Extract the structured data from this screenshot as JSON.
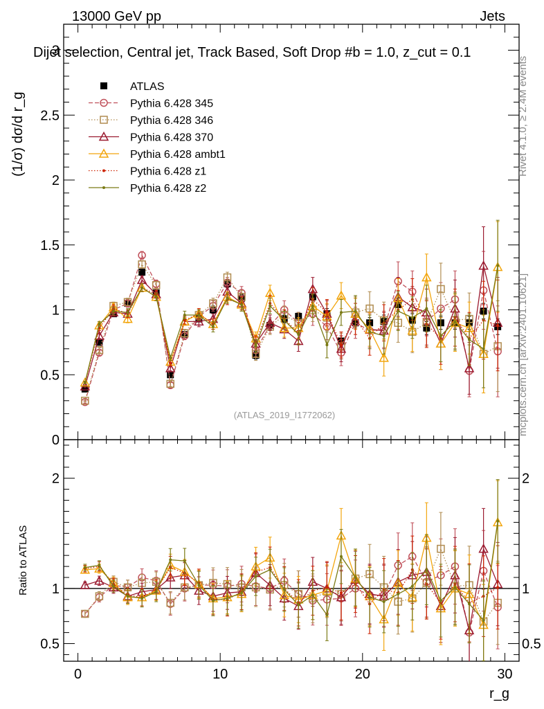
{
  "header": {
    "left": "13000 GeV pp",
    "right": "Jets"
  },
  "plot_title": "Dijet selection, Central jet, Track Based, Soft Drop #b = 1.0, z_cut = 0.1",
  "side_labels": {
    "rivet": "Rivet 4.1.0, ≥ 2.4M events",
    "mcplots": "mcplots.cern.ch [arXiv:2401.10621]"
  },
  "analysis_id": "(ATLAS_2019_I1772062)",
  "colors": {
    "ATLAS": "#000000",
    "p345": "#c0505a",
    "p346": "#b08c50",
    "p370": "#9b1b30",
    "ambt1": "#f2a50c",
    "z1": "#cc2200",
    "z2": "#7a7a14"
  },
  "chart_data": [
    {
      "type": "line",
      "panel": "main",
      "title": "Dijet selection, Central jet, Track Based, Soft Drop #b = 1.0, z_cut = 0.1",
      "ylabel": "(1/σ) dσ/d r_g",
      "xlabel": "",
      "xlim": [
        -1,
        31
      ],
      "ylim": [
        0,
        3.2
      ],
      "yticks": [
        0,
        0.5,
        1,
        1.5,
        2,
        2.5,
        3
      ],
      "legend_position": "top-left",
      "x": [
        0.5,
        1.5,
        2.5,
        3.5,
        4.5,
        5.5,
        6.5,
        7.5,
        8.5,
        9.5,
        10.5,
        11.5,
        12.5,
        13.5,
        14.5,
        15.5,
        16.5,
        17.5,
        18.5,
        19.5,
        20.5,
        21.5,
        22.5,
        23.5,
        24.5,
        25.5,
        26.5,
        27.5,
        28.5,
        29.5
      ],
      "series": [
        {
          "name": "ATLAS",
          "key": "ATLAS",
          "marker": "filled-square",
          "line": "none",
          "values": [
            0.39,
            0.75,
            0.97,
            1.05,
            1.29,
            1.13,
            0.5,
            0.81,
            0.93,
            1.0,
            1.2,
            1.09,
            0.65,
            0.88,
            0.93,
            0.95,
            1.1,
            0.97,
            0.76,
            0.9,
            0.9,
            0.91,
            1.04,
            0.92,
            0.86,
            0.9,
            0.9,
            0.9,
            0.99,
            0.87
          ],
          "errors": [
            0.02,
            0.02,
            0.02,
            0.02,
            0.02,
            0.02,
            0.02,
            0.02,
            0.02,
            0.03,
            0.03,
            0.03,
            0.03,
            0.03,
            0.03,
            0.03,
            0.04,
            0.04,
            0.04,
            0.04,
            0.04,
            0.05,
            0.05,
            0.05,
            0.05,
            0.05,
            0.05,
            0.05,
            0.06,
            0.06
          ]
        },
        {
          "name": "Pythia 6.428 345",
          "key": "p345",
          "marker": "open-circle",
          "line": "dashed",
          "values": [
            0.29,
            0.67,
            1.0,
            1.05,
            1.42,
            1.2,
            0.42,
            0.8,
            0.95,
            1.03,
            1.21,
            1.13,
            0.69,
            0.88,
            1.0,
            0.9,
            0.97,
            0.87,
            0.67,
            0.9,
            0.84,
            0.85,
            1.22,
            1.14,
            0.91,
            1.01,
            1.08,
            0.53,
            1.15,
            0.68
          ],
          "errors": [
            0.01,
            0.02,
            0.03,
            0.03,
            0.03,
            0.03,
            0.02,
            0.03,
            0.04,
            0.04,
            0.04,
            0.05,
            0.05,
            0.06,
            0.07,
            0.08,
            0.09,
            0.1,
            0.1,
            0.12,
            0.13,
            0.14,
            0.15,
            0.16,
            0.18,
            0.2,
            0.22,
            0.2,
            0.3,
            0.35
          ]
        },
        {
          "name": "Pythia 6.428 346",
          "key": "p346",
          "marker": "open-square",
          "line": "dotted",
          "values": [
            0.3,
            0.69,
            1.03,
            1.06,
            1.35,
            1.19,
            0.43,
            0.82,
            0.96,
            1.05,
            1.25,
            1.1,
            0.66,
            0.87,
            0.96,
            0.9,
            1.0,
            0.94,
            0.72,
            0.98,
            1.01,
            0.92,
            0.9,
            0.83,
            0.9,
            1.16,
            0.92,
            0.93,
            0.66,
            0.72
          ],
          "errors": [
            0.01,
            0.02,
            0.03,
            0.03,
            0.03,
            0.03,
            0.02,
            0.03,
            0.04,
            0.04,
            0.04,
            0.05,
            0.05,
            0.06,
            0.07,
            0.08,
            0.09,
            0.1,
            0.1,
            0.12,
            0.13,
            0.14,
            0.15,
            0.16,
            0.18,
            0.2,
            0.22,
            0.2,
            0.3,
            0.35
          ]
        },
        {
          "name": "Pythia 6.428 370",
          "key": "p370",
          "marker": "open-triangle",
          "line": "solid",
          "values": [
            0.41,
            0.8,
            0.98,
            0.97,
            1.23,
            1.12,
            0.55,
            0.91,
            0.91,
            0.93,
            1.14,
            1.05,
            0.74,
            0.9,
            0.85,
            0.76,
            1.16,
            0.97,
            0.7,
            0.97,
            0.85,
            0.84,
            1.1,
            1.02,
            0.98,
            0.74,
            1.01,
            0.55,
            1.34,
            0.9
          ],
          "errors": [
            0.01,
            0.02,
            0.03,
            0.03,
            0.03,
            0.03,
            0.02,
            0.03,
            0.04,
            0.04,
            0.04,
            0.05,
            0.05,
            0.06,
            0.07,
            0.08,
            0.09,
            0.1,
            0.1,
            0.12,
            0.13,
            0.14,
            0.15,
            0.16,
            0.18,
            0.2,
            0.22,
            0.2,
            0.3,
            0.35
          ]
        },
        {
          "name": "Pythia 6.428 ambt1",
          "key": "ambt1",
          "marker": "open-triangle",
          "line": "solid",
          "values": [
            0.44,
            0.88,
            1.02,
            0.93,
            1.17,
            1.1,
            0.6,
            0.91,
            0.97,
            0.89,
            1.1,
            1.04,
            0.78,
            1.13,
            0.86,
            0.86,
            1.03,
            0.95,
            1.11,
            0.97,
            0.85,
            0.63,
            1.09,
            0.84,
            1.25,
            0.74,
            0.9,
            0.86,
            0.66,
            1.33
          ],
          "errors": [
            0.01,
            0.02,
            0.03,
            0.03,
            0.03,
            0.03,
            0.02,
            0.03,
            0.04,
            0.04,
            0.04,
            0.05,
            0.05,
            0.06,
            0.07,
            0.08,
            0.09,
            0.1,
            0.1,
            0.12,
            0.13,
            0.14,
            0.15,
            0.16,
            0.18,
            0.2,
            0.22,
            0.2,
            0.3,
            0.35
          ]
        },
        {
          "name": "Pythia 6.428 z1",
          "key": "z1",
          "marker": "small-dot",
          "line": "dotted",
          "values": [
            0.44,
            0.86,
            1.01,
            0.97,
            1.17,
            1.12,
            0.59,
            0.92,
            0.97,
            0.89,
            1.08,
            1.05,
            0.75,
            1.05,
            0.93,
            0.82,
            1.08,
            0.98,
            0.73,
            0.93,
            0.78,
            0.9,
            1.0,
            1.08,
            0.89,
            0.78,
            0.94,
            0.78,
            0.92,
            0.88
          ],
          "errors": [
            0.01,
            0.02,
            0.03,
            0.03,
            0.03,
            0.03,
            0.02,
            0.03,
            0.04,
            0.04,
            0.04,
            0.05,
            0.05,
            0.06,
            0.07,
            0.08,
            0.09,
            0.1,
            0.1,
            0.12,
            0.13,
            0.14,
            0.15,
            0.16,
            0.18,
            0.2,
            0.22,
            0.2,
            0.3,
            0.35
          ]
        },
        {
          "name": "Pythia 6.428 z2",
          "key": "z2",
          "marker": "small-dot",
          "line": "solid",
          "values": [
            0.44,
            0.89,
            0.99,
            0.98,
            1.17,
            1.1,
            0.63,
            0.96,
            0.96,
            0.87,
            1.09,
            1.04,
            0.72,
            1.03,
            0.92,
            0.81,
            1.03,
            0.73,
            0.98,
            0.99,
            0.83,
            0.8,
            0.99,
            0.94,
            1.01,
            0.8,
            0.91,
            0.77,
            0.7,
            1.34
          ],
          "errors": [
            0.01,
            0.02,
            0.03,
            0.03,
            0.03,
            0.03,
            0.02,
            0.03,
            0.04,
            0.04,
            0.04,
            0.05,
            0.05,
            0.06,
            0.07,
            0.08,
            0.09,
            0.1,
            0.1,
            0.12,
            0.13,
            0.14,
            0.15,
            0.16,
            0.18,
            0.2,
            0.22,
            0.2,
            0.3,
            0.35
          ]
        }
      ]
    },
    {
      "type": "line",
      "panel": "ratio",
      "ylabel": "Ratio to ATLAS",
      "xlabel": "r_g",
      "xlim": [
        -1,
        31
      ],
      "ylim": [
        0.34,
        2.35
      ],
      "yticks": [
        0.5,
        1,
        2
      ],
      "xticks": [
        0,
        10,
        20,
        30
      ],
      "reference_line": 1.0,
      "x": [
        0.5,
        1.5,
        2.5,
        3.5,
        4.5,
        5.5,
        6.5,
        7.5,
        8.5,
        9.5,
        10.5,
        11.5,
        12.5,
        13.5,
        14.5,
        15.5,
        16.5,
        17.5,
        18.5,
        19.5,
        20.5,
        21.5,
        22.5,
        23.5,
        24.5,
        25.5,
        26.5,
        27.5,
        28.5,
        29.5
      ],
      "series": [
        {
          "name": "Pythia 6.428 345",
          "key": "p345",
          "marker": "open-circle",
          "line": "dashed",
          "values": [
            0.77,
            0.92,
            1.03,
            1.01,
            1.1,
            1.07,
            0.86,
            1.0,
            1.03,
            1.03,
            1.02,
            1.04,
            1.02,
            1.0,
            1.07,
            0.95,
            0.89,
            0.9,
            0.91,
            1.0,
            0.94,
            0.94,
            1.21,
            1.29,
            1.06,
            1.12,
            1.2,
            0.6,
            1.16,
            0.83
          ]
        },
        {
          "name": "Pythia 6.428 346",
          "key": "p346",
          "marker": "open-square",
          "line": "dotted",
          "values": [
            0.77,
            0.93,
            1.06,
            1.01,
            1.05,
            1.06,
            0.87,
            1.01,
            1.03,
            1.05,
            1.04,
            1.01,
            1.01,
            0.99,
            1.03,
            0.95,
            0.91,
            0.97,
            0.95,
            1.09,
            1.13,
            1.01,
            0.88,
            0.91,
            1.05,
            1.36,
            1.02,
            1.03,
            0.7,
            0.87
          ]
        },
        {
          "name": "Pythia 6.428 370",
          "key": "p370",
          "marker": "open-triangle",
          "line": "solid",
          "values": [
            1.03,
            1.07,
            1.01,
            0.93,
            0.97,
            0.99,
            1.1,
            1.12,
            0.98,
            0.93,
            0.96,
            0.97,
            1.14,
            1.03,
            0.91,
            0.84,
            1.06,
            1.0,
            0.92,
            1.08,
            0.95,
            0.93,
            1.06,
            1.12,
            1.15,
            0.84,
            1.12,
            0.62,
            1.36,
            1.04
          ]
        },
        {
          "name": "Pythia 6.428 ambt1",
          "key": "ambt1",
          "marker": "open-triangle",
          "line": "solid",
          "values": [
            1.17,
            1.18,
            1.05,
            0.92,
            0.92,
            0.98,
            1.21,
            1.15,
            1.04,
            0.91,
            0.92,
            0.95,
            1.2,
            1.28,
            0.94,
            0.9,
            0.94,
            0.98,
            1.48,
            1.09,
            0.93,
            0.72,
            1.05,
            0.92,
            1.46,
            0.82,
            1.0,
            0.95,
            0.67,
            1.6
          ]
        },
        {
          "name": "Pythia 6.428 z1",
          "key": "z1",
          "marker": "small-dot",
          "line": "dotted",
          "values": [
            1.18,
            1.2,
            1.04,
            0.94,
            0.92,
            0.99,
            1.19,
            1.14,
            1.05,
            0.9,
            0.9,
            0.97,
            1.15,
            1.19,
            1.0,
            0.87,
            0.98,
            1.01,
            0.96,
            1.04,
            0.86,
            0.99,
            0.96,
            1.17,
            1.04,
            0.87,
            1.04,
            0.87,
            0.93,
            1.01
          ]
        },
        {
          "name": "Pythia 6.428 z2",
          "key": "z2",
          "marker": "small-dot",
          "line": "solid",
          "values": [
            1.19,
            1.21,
            1.02,
            0.93,
            0.91,
            0.97,
            1.26,
            1.25,
            1.03,
            0.89,
            0.91,
            0.96,
            1.11,
            1.17,
            0.99,
            0.85,
            0.94,
            0.76,
            1.29,
            1.1,
            0.92,
            0.88,
            0.95,
            1.02,
            1.17,
            0.89,
            1.01,
            0.86,
            0.71,
            1.61
          ]
        }
      ]
    }
  ]
}
